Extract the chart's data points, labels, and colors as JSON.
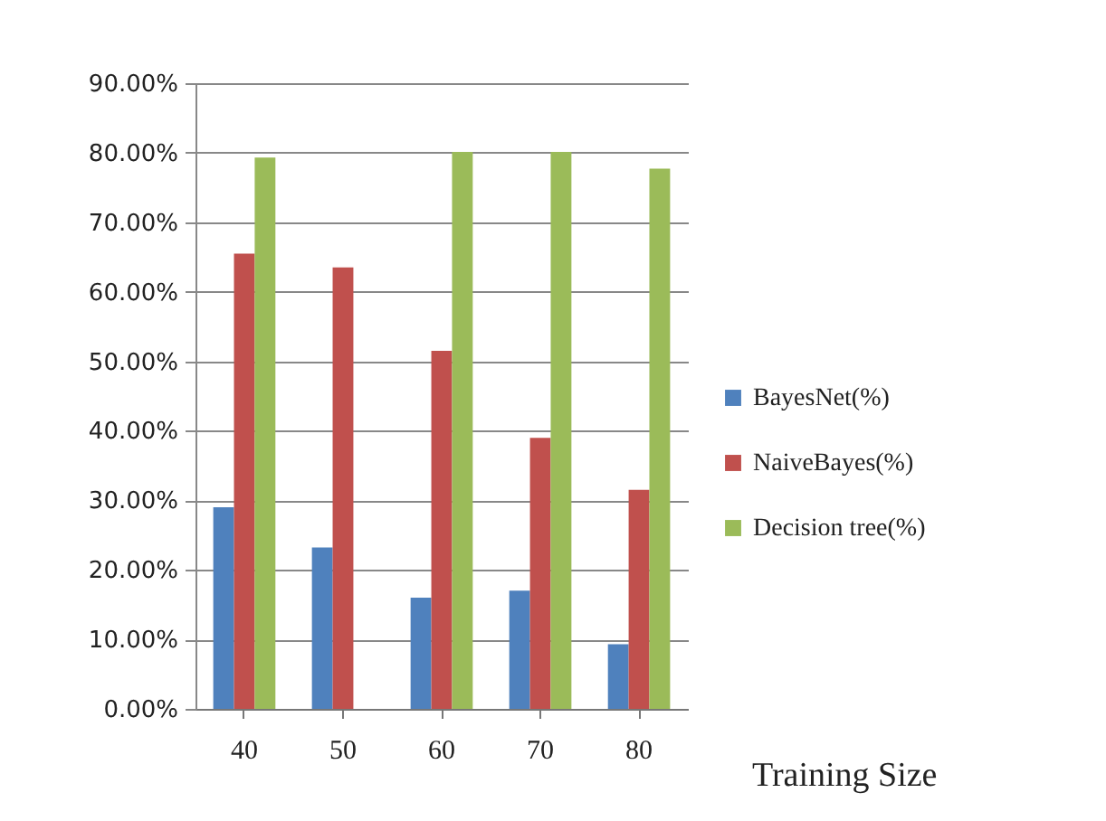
{
  "chart_data": {
    "type": "bar",
    "xlabel": "Training Size",
    "categories": [
      "40",
      "50",
      "60",
      "70",
      "80"
    ],
    "series": [
      {
        "name": "BayesNet(%)",
        "color": "#4f81bd",
        "values": [
          29,
          23.2,
          16,
          17,
          9.3
        ]
      },
      {
        "name": "NaiveBayes(%)",
        "color": "#c0504d",
        "values": [
          65.5,
          63.5,
          51.5,
          39,
          31.5
        ]
      },
      {
        "name": "Decision tree(%)",
        "color": "#9bbb59",
        "values": [
          79.3,
          null,
          80.1,
          80.1,
          77.7
        ]
      }
    ],
    "ylim": [
      0,
      90
    ],
    "yticks": [
      {
        "value": 0,
        "label": "0.00%"
      },
      {
        "value": 10,
        "label": "10.00%"
      },
      {
        "value": 20,
        "label": "20.00%"
      },
      {
        "value": 30,
        "label": "30.00%"
      },
      {
        "value": 40,
        "label": "40.00%"
      },
      {
        "value": 50,
        "label": "50.00%"
      },
      {
        "value": 60,
        "label": "60.00%"
      },
      {
        "value": 70,
        "label": "70.00%"
      },
      {
        "value": 80,
        "label": "80.00%"
      },
      {
        "value": 90,
        "label": "90.00%"
      }
    ],
    "grid": "y",
    "legend": "right"
  }
}
